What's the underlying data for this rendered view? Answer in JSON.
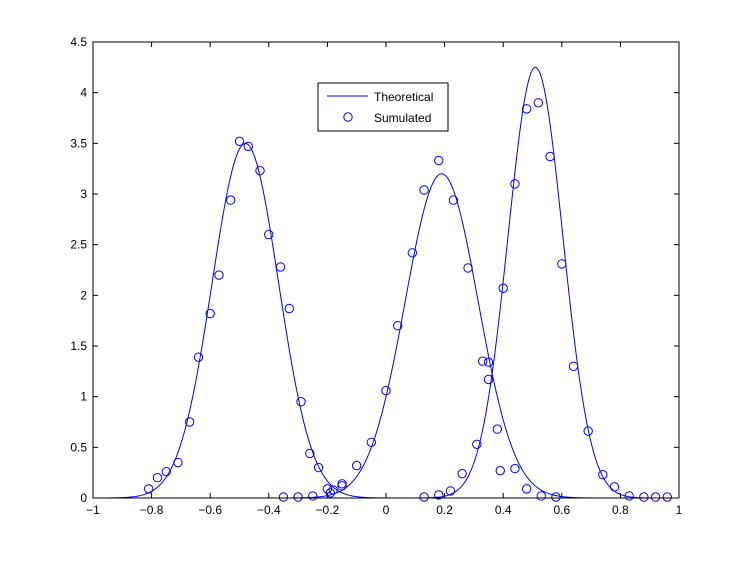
{
  "chart_data": {
    "type": "line",
    "title": "",
    "xlabel": "",
    "ylabel": "",
    "xlim": [
      -1,
      1
    ],
    "ylim": [
      0,
      4.5
    ],
    "xticks": [
      -1,
      -0.8,
      -0.6,
      -0.4,
      -0.2,
      0,
      0.2,
      0.4,
      0.6,
      0.8,
      1
    ],
    "xtick_labels": [
      "−1",
      "−0.8",
      "−0.6",
      "−0.4",
      "−0.2",
      "0",
      "0.2",
      "0.4",
      "0.6",
      "0.8",
      "1"
    ],
    "yticks": [
      0,
      0.5,
      1,
      1.5,
      2,
      2.5,
      3,
      3.5,
      4,
      4.5
    ],
    "ytick_labels": [
      "0",
      "0.5",
      "1",
      "1.5",
      "2",
      "2.5",
      "3",
      "3.5",
      "4",
      "4.5"
    ],
    "grid": false,
    "legend_position": "top-center",
    "line_color": "#0000ff",
    "series": [
      {
        "name": "Theoretical",
        "style": "line",
        "components": [
          {
            "mu": -0.48,
            "sigma": 0.1135,
            "amplitude": 3.5
          },
          {
            "mu": 0.19,
            "sigma": 0.1245,
            "amplitude": 3.2
          },
          {
            "mu": 0.51,
            "sigma": 0.0938,
            "amplitude": 4.25
          }
        ]
      },
      {
        "name": "Sumulated",
        "style": "markers",
        "marker": "circle-open",
        "x": [
          -0.81,
          -0.78,
          -0.75,
          -0.71,
          -0.67,
          -0.64,
          -0.6,
          -0.57,
          -0.53,
          -0.5,
          -0.47,
          -0.43,
          -0.4,
          -0.36,
          -0.33,
          -0.29,
          -0.26,
          -0.23,
          -0.2,
          -0.18,
          -0.15,
          -0.1,
          -0.05,
          0.0,
          0.04,
          0.09,
          0.13,
          0.18,
          0.23,
          0.28,
          0.33,
          0.35,
          0.38,
          0.4,
          0.44,
          0.48,
          0.52,
          0.56,
          0.6,
          0.64,
          0.69,
          0.74,
          0.78,
          0.83,
          0.88,
          0.92,
          0.96,
          -0.35,
          -0.3,
          -0.25,
          -0.19,
          -0.15,
          0.13,
          0.18,
          0.22,
          0.26,
          0.31,
          0.35,
          0.39,
          0.44,
          0.48,
          0.53,
          0.58
        ],
        "y": [
          0.09,
          0.2,
          0.26,
          0.35,
          0.75,
          1.39,
          1.82,
          2.2,
          2.94,
          3.52,
          3.47,
          3.23,
          2.6,
          2.28,
          1.87,
          0.95,
          0.44,
          0.3,
          0.09,
          0.08,
          0.14,
          0.32,
          0.55,
          1.06,
          1.7,
          2.42,
          3.04,
          3.33,
          2.94,
          2.27,
          1.35,
          1.17,
          0.68,
          2.07,
          3.1,
          3.84,
          3.9,
          3.37,
          2.31,
          1.3,
          0.66,
          0.23,
          0.11,
          0.02,
          0.01,
          0.01,
          0.01,
          0.01,
          0.01,
          0.02,
          0.05,
          0.12,
          0.01,
          0.03,
          0.07,
          0.24,
          0.53,
          1.34,
          0.27,
          0.29,
          0.09,
          0.02,
          0.01
        ]
      }
    ]
  }
}
